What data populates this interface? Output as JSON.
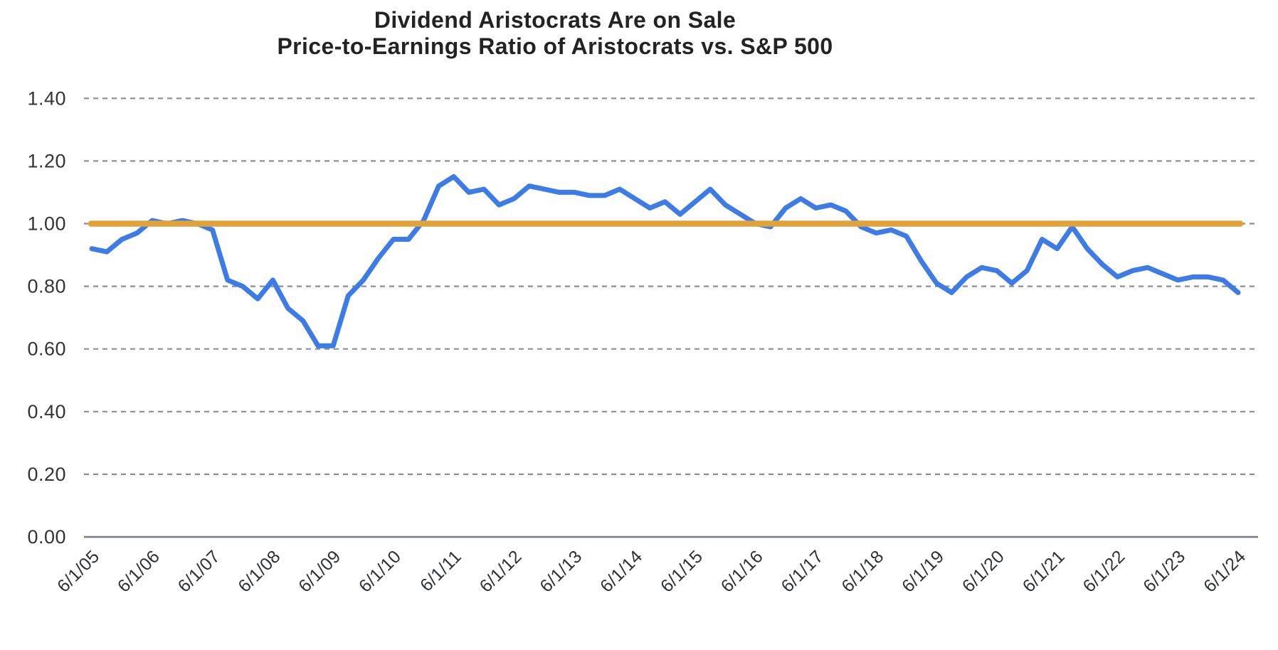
{
  "page": {
    "background": "#ffffff"
  },
  "chart_data": {
    "type": "line",
    "title": "Dividend Aristocrats Are on Sale",
    "subtitle": "Price-to-Earnings Ratio of Aristocrats vs. S&P 500",
    "x": [
      "6/1/05",
      "9/1/05",
      "12/1/05",
      "3/1/06",
      "6/1/06",
      "9/1/06",
      "12/1/06",
      "3/1/07",
      "6/1/07",
      "9/1/07",
      "12/1/07",
      "3/1/08",
      "6/1/08",
      "9/1/08",
      "12/1/08",
      "3/1/09",
      "6/1/09",
      "9/1/09",
      "12/1/09",
      "3/1/10",
      "6/1/10",
      "9/1/10",
      "12/1/10",
      "3/1/11",
      "6/1/11",
      "9/1/11",
      "12/1/11",
      "3/1/12",
      "6/1/12",
      "9/1/12",
      "12/1/12",
      "3/1/13",
      "6/1/13",
      "9/1/13",
      "12/1/13",
      "3/1/14",
      "6/1/14",
      "9/1/14",
      "12/1/14",
      "3/1/15",
      "6/1/15",
      "9/1/15",
      "12/1/15",
      "3/1/16",
      "6/1/16",
      "9/1/16",
      "12/1/16",
      "3/1/17",
      "6/1/17",
      "9/1/17",
      "12/1/17",
      "3/1/18",
      "6/1/18",
      "9/1/18",
      "12/1/18",
      "3/1/19",
      "6/1/19",
      "9/1/19",
      "12/1/19",
      "3/1/20",
      "6/1/20",
      "9/1/20",
      "12/1/20",
      "3/1/21",
      "6/1/21",
      "9/1/21",
      "12/1/21",
      "3/1/22",
      "6/1/22",
      "9/1/22",
      "12/1/22",
      "3/1/23",
      "6/1/23",
      "9/1/23",
      "12/1/23",
      "3/1/24",
      "6/1/24"
    ],
    "series": [
      {
        "name": "Aristocrats P/E ratio relative to S&P 500",
        "color": "#3D7BE6",
        "values": [
          0.92,
          0.91,
          0.95,
          0.97,
          1.01,
          1.0,
          1.01,
          1.0,
          0.98,
          0.82,
          0.8,
          0.76,
          0.82,
          0.73,
          0.69,
          0.61,
          0.61,
          0.77,
          0.82,
          0.89,
          0.95,
          0.95,
          1.01,
          1.12,
          1.15,
          1.1,
          1.11,
          1.06,
          1.08,
          1.12,
          1.11,
          1.1,
          1.1,
          1.09,
          1.09,
          1.11,
          1.08,
          1.05,
          1.07,
          1.03,
          1.07,
          1.11,
          1.06,
          1.03,
          1.0,
          0.99,
          1.05,
          1.08,
          1.05,
          1.06,
          1.04,
          0.99,
          0.97,
          0.98,
          0.96,
          0.88,
          0.81,
          0.78,
          0.83,
          0.86,
          0.85,
          0.81,
          0.85,
          0.95,
          0.92,
          0.99,
          0.92,
          0.87,
          0.83,
          0.85,
          0.86,
          0.84,
          0.82,
          0.83,
          0.83,
          0.82,
          0.78
        ]
      }
    ],
    "reference_line": {
      "value": 1.0,
      "color": "#E0A33C"
    },
    "x_major_ticks": [
      "6/1/05",
      "6/1/06",
      "6/1/07",
      "6/1/08",
      "6/1/09",
      "6/1/10",
      "6/1/11",
      "6/1/12",
      "6/1/13",
      "6/1/14",
      "6/1/15",
      "6/1/16",
      "6/1/17",
      "6/1/18",
      "6/1/19",
      "6/1/20",
      "6/1/21",
      "6/1/22",
      "6/1/23",
      "6/1/24"
    ],
    "yticks": [
      "0.00",
      "0.20",
      "0.40",
      "0.60",
      "0.80",
      "1.00",
      "1.20",
      "1.40"
    ],
    "ylim": [
      0,
      1.4
    ],
    "grid": "horizontal-dashed",
    "legend": "none"
  },
  "colors": {
    "grid": "#8B8D9E",
    "axis": "#77798C",
    "tick_text": "#33343a",
    "title_text": "#232323"
  }
}
